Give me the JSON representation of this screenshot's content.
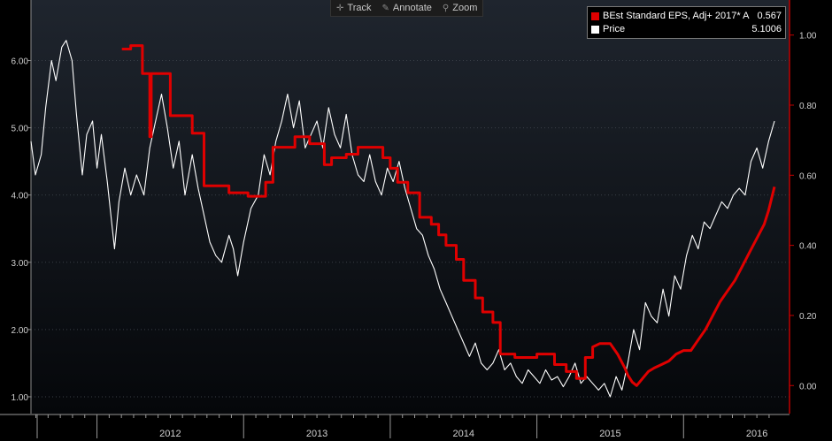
{
  "toolbar": {
    "track_label": "Track",
    "annotate_label": "Annotate",
    "zoom_label": "Zoom",
    "track_icon": "crosshair-icon",
    "annotate_icon": "pencil-icon",
    "zoom_icon": "magnifier-icon"
  },
  "legend": {
    "eps": {
      "name": "BEst Standard EPS, Adj+ 2017* A",
      "value": "0.567",
      "color": "#e00000"
    },
    "price": {
      "name": "Price",
      "value": "5.1006",
      "color": "#ffffff"
    }
  },
  "colors": {
    "background": "#000000",
    "grid": "#3a3f47",
    "eps": "#e00000",
    "price": "#ffffff",
    "right_axis": "#c00000"
  },
  "chart_data": {
    "type": "line",
    "x_range": [
      2011.55,
      2016.62
    ],
    "year_ticks": [
      "2012",
      "2013",
      "2014",
      "2015",
      "2016"
    ],
    "left_axis": {
      "ticks": [
        "1.00",
        "2.00",
        "3.00",
        "4.00",
        "5.00",
        "6.00"
      ],
      "range": [
        0.75,
        6.9
      ]
    },
    "right_axis": {
      "ticks": [
        "0.00",
        "0.20",
        "0.40",
        "0.60",
        "0.80",
        "1.00"
      ],
      "range": [
        -0.08,
        1.1
      ]
    },
    "grid": true,
    "legend_position": "top-right",
    "series": [
      {
        "name": "Price",
        "axis": "left",
        "points": [
          [
            2011.55,
            4.8
          ],
          [
            2011.58,
            4.3
          ],
          [
            2011.62,
            4.6
          ],
          [
            2011.65,
            5.3
          ],
          [
            2011.69,
            6.0
          ],
          [
            2011.72,
            5.7
          ],
          [
            2011.76,
            6.2
          ],
          [
            2011.79,
            6.3
          ],
          [
            2011.83,
            6.0
          ],
          [
            2011.86,
            5.2
          ],
          [
            2011.9,
            4.3
          ],
          [
            2011.93,
            4.9
          ],
          [
            2011.97,
            5.1
          ],
          [
            2012.0,
            4.4
          ],
          [
            2012.03,
            4.9
          ],
          [
            2012.07,
            4.2
          ],
          [
            2012.1,
            3.6
          ],
          [
            2012.12,
            3.2
          ],
          [
            2012.15,
            3.9
          ],
          [
            2012.19,
            4.4
          ],
          [
            2012.23,
            4.0
          ],
          [
            2012.27,
            4.3
          ],
          [
            2012.32,
            4.0
          ],
          [
            2012.36,
            4.7
          ],
          [
            2012.4,
            5.1
          ],
          [
            2012.44,
            5.5
          ],
          [
            2012.48,
            5.0
          ],
          [
            2012.52,
            4.4
          ],
          [
            2012.56,
            4.8
          ],
          [
            2012.6,
            4.0
          ],
          [
            2012.65,
            4.6
          ],
          [
            2012.69,
            4.1
          ],
          [
            2012.73,
            3.7
          ],
          [
            2012.77,
            3.3
          ],
          [
            2012.81,
            3.1
          ],
          [
            2012.85,
            3.0
          ],
          [
            2012.9,
            3.4
          ],
          [
            2012.93,
            3.2
          ],
          [
            2012.96,
            2.8
          ],
          [
            2013.0,
            3.3
          ],
          [
            2013.05,
            3.8
          ],
          [
            2013.1,
            4.0
          ],
          [
            2013.14,
            4.6
          ],
          [
            2013.18,
            4.3
          ],
          [
            2013.22,
            4.8
          ],
          [
            2013.26,
            5.1
          ],
          [
            2013.3,
            5.5
          ],
          [
            2013.34,
            5.0
          ],
          [
            2013.38,
            5.4
          ],
          [
            2013.42,
            4.7
          ],
          [
            2013.46,
            4.9
          ],
          [
            2013.5,
            5.1
          ],
          [
            2013.54,
            4.7
          ],
          [
            2013.58,
            5.3
          ],
          [
            2013.62,
            4.9
          ],
          [
            2013.66,
            4.7
          ],
          [
            2013.7,
            5.2
          ],
          [
            2013.74,
            4.6
          ],
          [
            2013.78,
            4.3
          ],
          [
            2013.82,
            4.2
          ],
          [
            2013.86,
            4.6
          ],
          [
            2013.9,
            4.2
          ],
          [
            2013.94,
            4.0
          ],
          [
            2013.98,
            4.4
          ],
          [
            2014.02,
            4.2
          ],
          [
            2014.06,
            4.5
          ],
          [
            2014.1,
            4.1
          ],
          [
            2014.14,
            3.8
          ],
          [
            2014.18,
            3.5
          ],
          [
            2014.22,
            3.4
          ],
          [
            2014.26,
            3.1
          ],
          [
            2014.3,
            2.9
          ],
          [
            2014.34,
            2.6
          ],
          [
            2014.38,
            2.4
          ],
          [
            2014.42,
            2.2
          ],
          [
            2014.46,
            2.0
          ],
          [
            2014.5,
            1.8
          ],
          [
            2014.54,
            1.6
          ],
          [
            2014.58,
            1.8
          ],
          [
            2014.62,
            1.5
          ],
          [
            2014.66,
            1.4
          ],
          [
            2014.7,
            1.5
          ],
          [
            2014.74,
            1.7
          ],
          [
            2014.78,
            1.4
          ],
          [
            2014.82,
            1.5
          ],
          [
            2014.86,
            1.3
          ],
          [
            2014.9,
            1.2
          ],
          [
            2014.94,
            1.4
          ],
          [
            2014.98,
            1.3
          ],
          [
            2015.02,
            1.2
          ],
          [
            2015.06,
            1.4
          ],
          [
            2015.1,
            1.25
          ],
          [
            2015.14,
            1.3
          ],
          [
            2015.18,
            1.15
          ],
          [
            2015.22,
            1.3
          ],
          [
            2015.26,
            1.5
          ],
          [
            2015.3,
            1.2
          ],
          [
            2015.34,
            1.3
          ],
          [
            2015.38,
            1.2
          ],
          [
            2015.42,
            1.1
          ],
          [
            2015.46,
            1.2
          ],
          [
            2015.5,
            1.0
          ],
          [
            2015.54,
            1.3
          ],
          [
            2015.58,
            1.1
          ],
          [
            2015.62,
            1.5
          ],
          [
            2015.66,
            2.0
          ],
          [
            2015.7,
            1.7
          ],
          [
            2015.74,
            2.4
          ],
          [
            2015.78,
            2.2
          ],
          [
            2015.82,
            2.1
          ],
          [
            2015.86,
            2.6
          ],
          [
            2015.9,
            2.2
          ],
          [
            2015.94,
            2.8
          ],
          [
            2015.98,
            2.6
          ],
          [
            2016.02,
            3.1
          ],
          [
            2016.06,
            3.4
          ],
          [
            2016.1,
            3.2
          ],
          [
            2016.14,
            3.6
          ],
          [
            2016.18,
            3.5
          ],
          [
            2016.22,
            3.7
          ],
          [
            2016.26,
            3.9
          ],
          [
            2016.3,
            3.8
          ],
          [
            2016.34,
            4.0
          ],
          [
            2016.38,
            4.1
          ],
          [
            2016.42,
            4.0
          ],
          [
            2016.46,
            4.5
          ],
          [
            2016.5,
            4.7
          ],
          [
            2016.54,
            4.4
          ],
          [
            2016.58,
            4.8
          ],
          [
            2016.62,
            5.1
          ]
        ]
      },
      {
        "name": "BEst Standard EPS, Adj+ 2017* A",
        "axis": "right",
        "points": [
          [
            2012.17,
            0.96
          ],
          [
            2012.23,
            0.96
          ],
          [
            2012.23,
            0.97
          ],
          [
            2012.31,
            0.97
          ],
          [
            2012.31,
            0.89
          ],
          [
            2012.36,
            0.89
          ],
          [
            2012.36,
            0.71
          ],
          [
            2012.37,
            0.71
          ],
          [
            2012.37,
            0.89
          ],
          [
            2012.5,
            0.89
          ],
          [
            2012.5,
            0.77
          ],
          [
            2012.65,
            0.77
          ],
          [
            2012.65,
            0.72
          ],
          [
            2012.73,
            0.72
          ],
          [
            2012.73,
            0.57
          ],
          [
            2012.9,
            0.57
          ],
          [
            2012.9,
            0.55
          ],
          [
            2013.03,
            0.55
          ],
          [
            2013.03,
            0.54
          ],
          [
            2013.15,
            0.54
          ],
          [
            2013.15,
            0.58
          ],
          [
            2013.2,
            0.58
          ],
          [
            2013.2,
            0.68
          ],
          [
            2013.35,
            0.68
          ],
          [
            2013.35,
            0.71
          ],
          [
            2013.45,
            0.71
          ],
          [
            2013.45,
            0.69
          ],
          [
            2013.55,
            0.69
          ],
          [
            2013.55,
            0.63
          ],
          [
            2013.6,
            0.63
          ],
          [
            2013.6,
            0.65
          ],
          [
            2013.7,
            0.65
          ],
          [
            2013.7,
            0.66
          ],
          [
            2013.78,
            0.66
          ],
          [
            2013.78,
            0.68
          ],
          [
            2013.95,
            0.68
          ],
          [
            2013.95,
            0.65
          ],
          [
            2014.0,
            0.65
          ],
          [
            2014.0,
            0.62
          ],
          [
            2014.05,
            0.62
          ],
          [
            2014.05,
            0.58
          ],
          [
            2014.12,
            0.58
          ],
          [
            2014.12,
            0.55
          ],
          [
            2014.2,
            0.55
          ],
          [
            2014.2,
            0.48
          ],
          [
            2014.28,
            0.48
          ],
          [
            2014.28,
            0.46
          ],
          [
            2014.33,
            0.46
          ],
          [
            2014.33,
            0.43
          ],
          [
            2014.38,
            0.43
          ],
          [
            2014.38,
            0.4
          ],
          [
            2014.45,
            0.4
          ],
          [
            2014.45,
            0.36
          ],
          [
            2014.5,
            0.36
          ],
          [
            2014.5,
            0.3
          ],
          [
            2014.58,
            0.3
          ],
          [
            2014.58,
            0.25
          ],
          [
            2014.63,
            0.25
          ],
          [
            2014.63,
            0.21
          ],
          [
            2014.7,
            0.21
          ],
          [
            2014.7,
            0.18
          ],
          [
            2014.75,
            0.18
          ],
          [
            2014.75,
            0.09
          ],
          [
            2014.85,
            0.09
          ],
          [
            2014.85,
            0.08
          ],
          [
            2015.0,
            0.08
          ],
          [
            2015.0,
            0.09
          ],
          [
            2015.12,
            0.09
          ],
          [
            2015.12,
            0.06
          ],
          [
            2015.2,
            0.06
          ],
          [
            2015.2,
            0.04
          ],
          [
            2015.27,
            0.04
          ],
          [
            2015.27,
            0.02
          ],
          [
            2015.33,
            0.02
          ],
          [
            2015.33,
            0.08
          ],
          [
            2015.38,
            0.08
          ],
          [
            2015.38,
            0.11
          ],
          [
            2015.43,
            0.12
          ],
          [
            2015.5,
            0.12
          ],
          [
            2015.55,
            0.09
          ],
          [
            2015.6,
            0.05
          ],
          [
            2015.62,
            0.03
          ],
          [
            2015.65,
            0.01
          ],
          [
            2015.68,
            0.0
          ],
          [
            2015.72,
            0.02
          ],
          [
            2015.76,
            0.04
          ],
          [
            2015.8,
            0.05
          ],
          [
            2015.85,
            0.06
          ],
          [
            2015.9,
            0.07
          ],
          [
            2015.95,
            0.09
          ],
          [
            2016.0,
            0.1
          ],
          [
            2016.05,
            0.1
          ],
          [
            2016.1,
            0.13
          ],
          [
            2016.15,
            0.16
          ],
          [
            2016.2,
            0.2
          ],
          [
            2016.25,
            0.24
          ],
          [
            2016.3,
            0.27
          ],
          [
            2016.35,
            0.3
          ],
          [
            2016.4,
            0.34
          ],
          [
            2016.45,
            0.38
          ],
          [
            2016.5,
            0.42
          ],
          [
            2016.55,
            0.46
          ],
          [
            2016.58,
            0.5
          ],
          [
            2016.61,
            0.55
          ],
          [
            2016.62,
            0.567
          ]
        ]
      }
    ]
  }
}
